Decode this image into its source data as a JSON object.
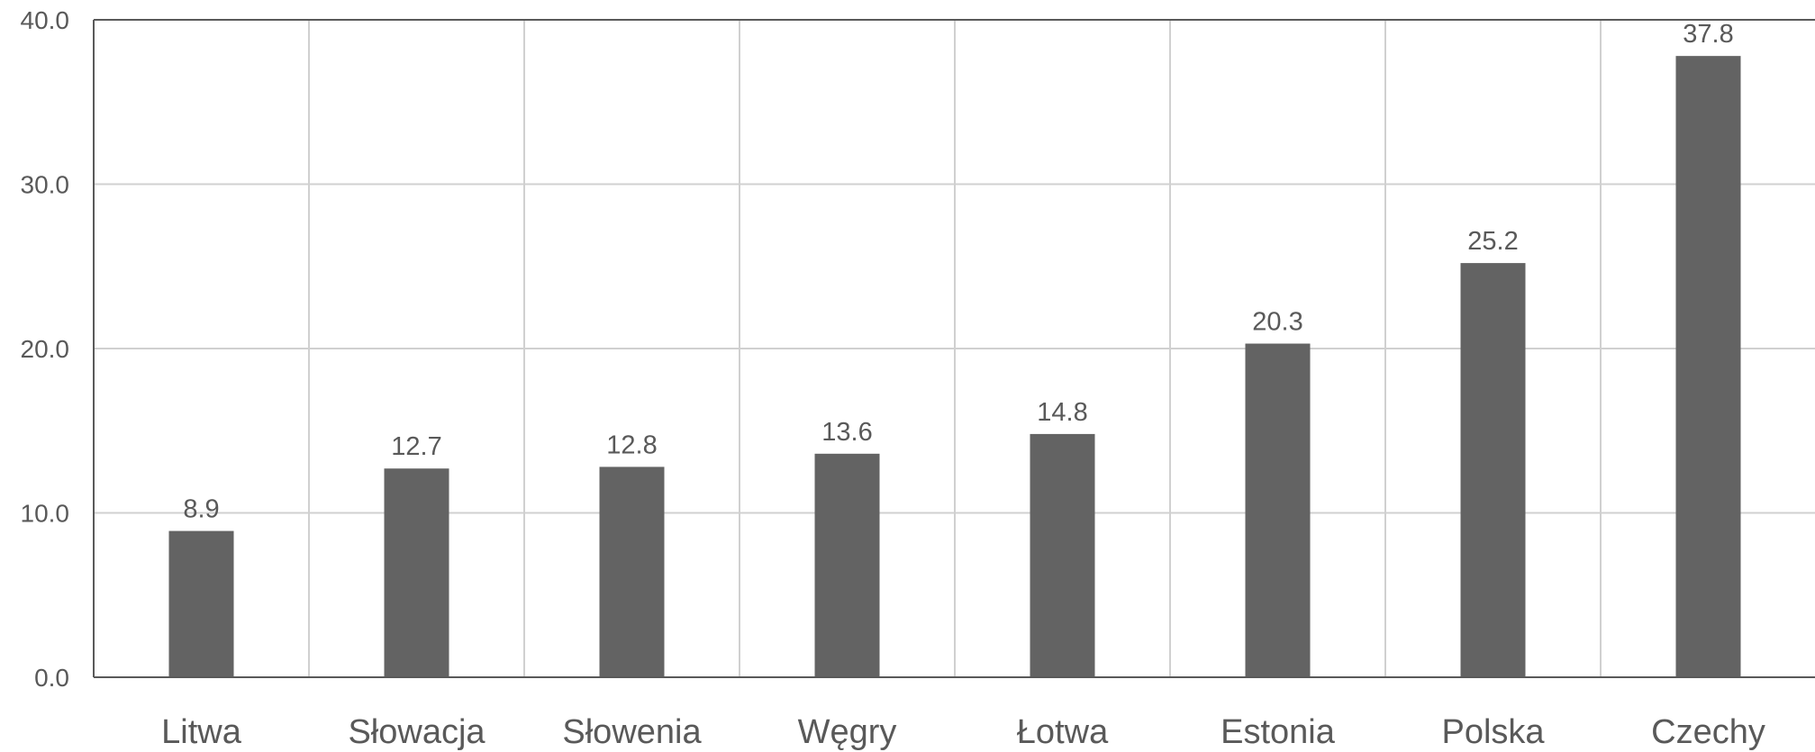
{
  "chart_data": {
    "type": "bar",
    "categories": [
      "Litwa",
      "Słowacja",
      "Słowenia",
      "Węgry",
      "Łotwa",
      "Estonia",
      "Polska",
      "Czechy"
    ],
    "values": [
      8.9,
      12.7,
      12.8,
      13.6,
      14.8,
      20.3,
      25.2,
      37.8
    ],
    "data_labels": [
      "8.9",
      "12.7",
      "12.8",
      "13.6",
      "14.8",
      "20.3",
      "25.2",
      "37.8"
    ],
    "y_ticks": [
      "0.0",
      "10.0",
      "20.0",
      "30.0",
      "40.0"
    ],
    "ylim": [
      0,
      40
    ],
    "title": "",
    "xlabel": "",
    "ylabel": "",
    "grid": true,
    "legend": "none",
    "colors": {
      "bar": "#636363",
      "grid": "#d0d0d0",
      "axis": "#595959",
      "text": "#595959"
    }
  }
}
